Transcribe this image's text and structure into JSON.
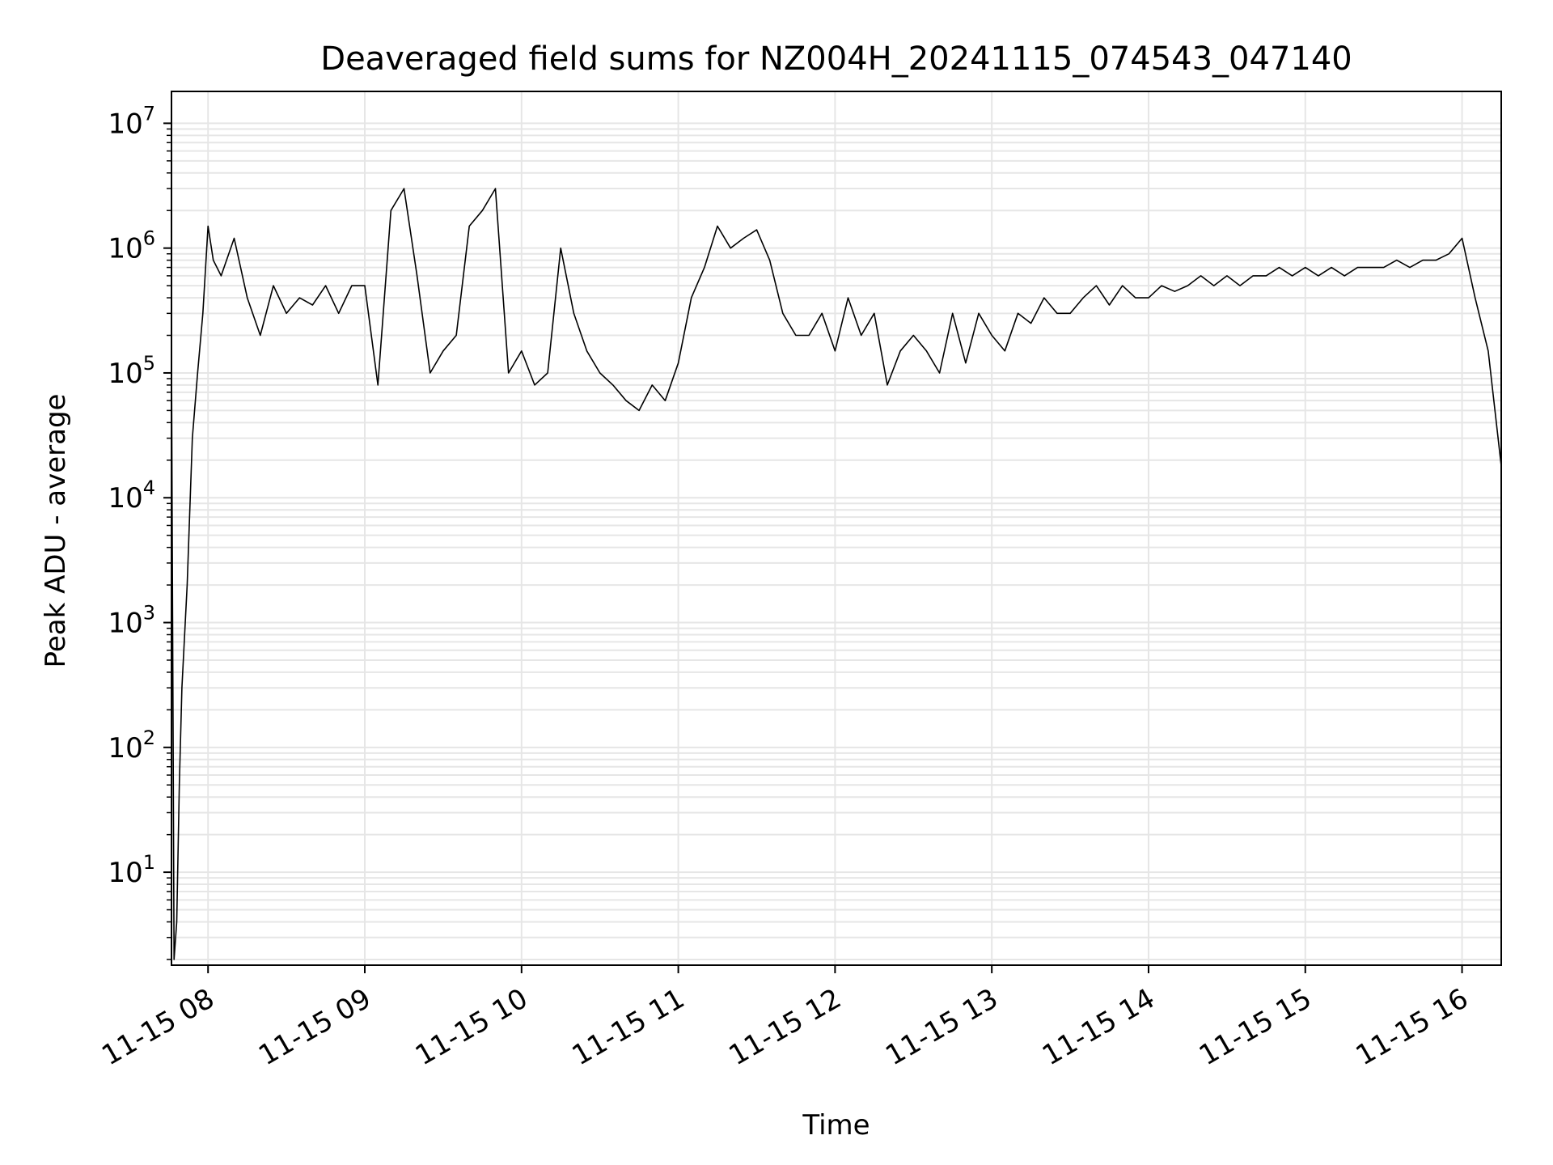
{
  "chart_data": {
    "type": "line",
    "title": "Deaveraged field sums for NZ004H_20241115_074543_047140",
    "xlabel": "Time",
    "ylabel": "Peak ADU - average",
    "yscale": "log",
    "ylim": [
      1.8,
      18000000
    ],
    "xlim": [
      "11-15 07:46",
      "11-15 16:15"
    ],
    "grid": true,
    "legend": "none",
    "line_color": "#000000",
    "x_ticks": [
      "11-15 08",
      "11-15 09",
      "11-15 10",
      "11-15 11",
      "11-15 12",
      "11-15 13",
      "11-15 14",
      "11-15 15",
      "11-15 16"
    ],
    "y_ticks": [
      {
        "base": "10",
        "exp": "1"
      },
      {
        "base": "10",
        "exp": "2"
      },
      {
        "base": "10",
        "exp": "3"
      },
      {
        "base": "10",
        "exp": "4"
      },
      {
        "base": "10",
        "exp": "5"
      },
      {
        "base": "10",
        "exp": "6"
      },
      {
        "base": "10",
        "exp": "7"
      }
    ],
    "series": [
      {
        "x": [
          "07:46",
          "07:47",
          "07:48",
          "07:49",
          "07:50",
          "07:52",
          "07:54",
          "07:56",
          "07:58",
          "08:00",
          "08:02",
          "08:05",
          "08:10",
          "08:15",
          "08:20",
          "08:25",
          "08:30",
          "08:35",
          "08:40",
          "08:45",
          "08:50",
          "08:55",
          "09:00",
          "09:05",
          "09:10",
          "09:15",
          "09:20",
          "09:25",
          "09:30",
          "09:35",
          "09:40",
          "09:45",
          "09:50",
          "09:55",
          "10:00",
          "10:05",
          "10:10",
          "10:15",
          "10:20",
          "10:25",
          "10:30",
          "10:35",
          "10:40",
          "10:45",
          "10:50",
          "10:55",
          "11:00",
          "11:05",
          "11:10",
          "11:15",
          "11:20",
          "11:25",
          "11:30",
          "11:35",
          "11:40",
          "11:45",
          "11:50",
          "11:55",
          "12:00",
          "12:05",
          "12:10",
          "12:15",
          "12:20",
          "12:25",
          "12:30",
          "12:35",
          "12:40",
          "12:45",
          "12:50",
          "12:55",
          "13:00",
          "13:05",
          "13:10",
          "13:15",
          "13:20",
          "13:25",
          "13:30",
          "13:35",
          "13:40",
          "13:45",
          "13:50",
          "13:55",
          "14:00",
          "14:05",
          "14:10",
          "14:15",
          "14:20",
          "14:25",
          "14:30",
          "14:35",
          "14:40",
          "14:45",
          "14:50",
          "14:55",
          "15:00",
          "15:05",
          "15:10",
          "15:15",
          "15:20",
          "15:25",
          "15:30",
          "15:35",
          "15:40",
          "15:45",
          "15:50",
          "15:55",
          "16:00",
          "16:05",
          "16:10",
          "16:15"
        ],
        "y": [
          150000,
          2,
          4,
          50,
          300,
          2000,
          30000,
          100000,
          300000,
          1500000,
          800000,
          600000,
          1200000,
          400000,
          200000,
          500000,
          300000,
          400000,
          350000,
          500000,
          300000,
          500000,
          500000,
          80000,
          2000000,
          3000000,
          600000,
          100000,
          150000,
          200000,
          1500000,
          2000000,
          3000000,
          100000,
          150000,
          80000,
          100000,
          1000000,
          300000,
          150000,
          100000,
          80000,
          60000,
          50000,
          80000,
          60000,
          120000,
          400000,
          700000,
          1500000,
          1000000,
          1200000,
          1400000,
          800000,
          300000,
          200000,
          200000,
          300000,
          150000,
          400000,
          200000,
          300000,
          80000,
          150000,
          200000,
          150000,
          100000,
          300000,
          120000,
          300000,
          200000,
          150000,
          300000,
          250000,
          400000,
          300000,
          300000,
          400000,
          500000,
          350000,
          500000,
          400000,
          400000,
          500000,
          450000,
          500000,
          600000,
          500000,
          600000,
          500000,
          600000,
          600000,
          700000,
          600000,
          700000,
          600000,
          700000,
          600000,
          700000,
          700000,
          700000,
          800000,
          700000,
          800000,
          800000,
          900000,
          1200000,
          400000,
          150000,
          18000
        ]
      }
    ]
  }
}
